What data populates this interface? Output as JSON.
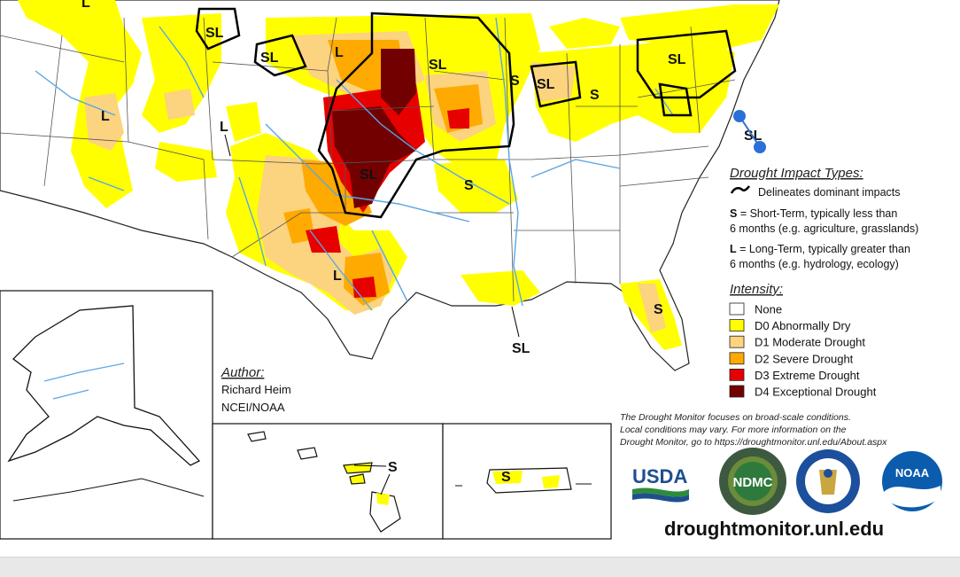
{
  "impact_types": {
    "title": "Drought Impact Types:",
    "delineates": "Delineates dominant impacts",
    "short_term_code": "S",
    "short_term_line1": " = Short-Term, typically less than",
    "short_term_line2": "6 months (e.g. agriculture, grasslands)",
    "long_term_code": "L",
    "long_term_line1": " = Long-Term, typically greater than",
    "long_term_line2": "6 months (e.g. hydrology, ecology)"
  },
  "intensity": {
    "title": "Intensity:",
    "categories": [
      {
        "label": "None",
        "color": "#ffffff"
      },
      {
        "label": "D0 Abnormally Dry",
        "color": "#ffff00"
      },
      {
        "label": "D1 Moderate Drought",
        "color": "#fcd37f"
      },
      {
        "label": "D2 Severe Drought",
        "color": "#ffaa00"
      },
      {
        "label": "D3 Extreme Drought",
        "color": "#e60000"
      },
      {
        "label": "D4 Exceptional Drought",
        "color": "#730000"
      }
    ]
  },
  "author": {
    "heading": "Author:",
    "name": "Richard Heim",
    "org": "NCEI/NOAA"
  },
  "disclaimer": {
    "line1": "The Drought Monitor focuses on broad-scale conditions.",
    "line2": "Local conditions may vary. For more information on the",
    "line3": "Drought Monitor, go to https://droughtmonitor.unl.edu/About.aspx"
  },
  "logos": {
    "usda": "USDA",
    "ndmc": "NDMC",
    "noaa": "NOAA"
  },
  "url": "droughtmonitor.unl.edu",
  "map_labels": {
    "l_nw": "L",
    "sl_mt": "SL",
    "sl_id": "SL",
    "l_sd": "L",
    "sl_mn": "SL",
    "s_oh": "S",
    "sl_mi": "SL",
    "s_oh2": "S",
    "sl_ny": "SL",
    "l_nv": "L",
    "l_co": "L",
    "sl_ok": "SL",
    "s_ar": "S",
    "l_tx": "L",
    "sl_la": "SL",
    "s_fl": "S",
    "sl_de": "SL",
    "s_hi": "S",
    "s_pr": "S"
  },
  "colors": {
    "d0": "#ffff00",
    "d1": "#fcd37f",
    "d2": "#ffaa00",
    "d3": "#e60000",
    "d4": "#730000",
    "river": "#5aa6e6",
    "border": "#444444"
  }
}
